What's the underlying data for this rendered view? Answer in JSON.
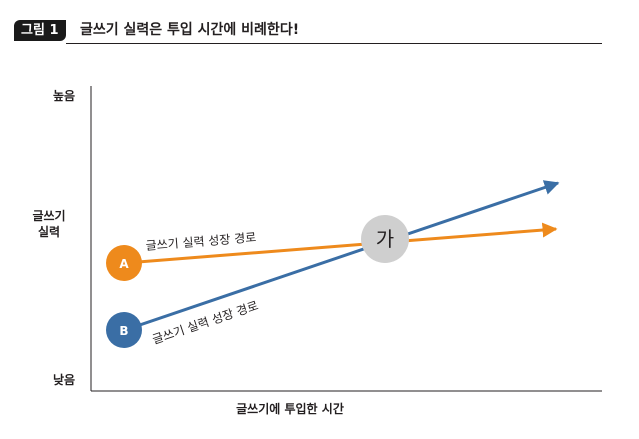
{
  "figure": {
    "badge": "그림 1",
    "title": "글쓰기 실력은 투입 시간에 비례한다!"
  },
  "axes": {
    "y_high": "높음",
    "y_low": "낮음",
    "y_title": "글쓰기\n실력",
    "x_title": "글쓰기에 투입한 시간"
  },
  "paths": {
    "a": {
      "marker": "A",
      "label": "글쓰기 실력 성장 경로",
      "color": "#ee8a1c"
    },
    "b": {
      "marker": "B",
      "label": "글쓰기 실력 성장 경로",
      "color": "#3a6ea5"
    }
  },
  "junction": {
    "label": "가",
    "color": "#cfcfcf"
  }
}
